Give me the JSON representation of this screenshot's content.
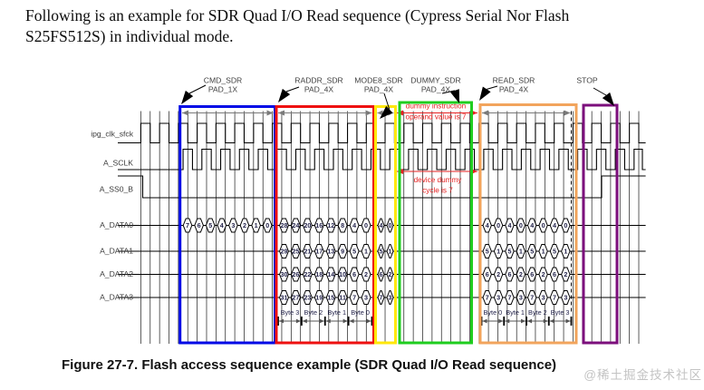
{
  "paragraph": {
    "line1": "Following is an example for SDR Quad I/O Read sequence (Cypress Serial Nor Flash",
    "line2": "S25FS512S) in individual mode."
  },
  "caption": "Figure 27-7. Flash access sequence example (SDR Quad I/O Read sequence)",
  "watermark": "@稀土掘金技术社区",
  "diagram": {
    "signals": [
      "ipg_clk_sfck",
      "A_SCLK",
      "A_SS0_B",
      "A_DATA0",
      "A_DATA1",
      "A_DATA2",
      "A_DATA3"
    ],
    "sections": [
      {
        "id": "cmd",
        "label": [
          "CMD_SDR",
          "PAD_1X"
        ],
        "color": "#0009e6"
      },
      {
        "id": "raddr",
        "label": [
          "RADDR_SDR",
          "PAD_4X"
        ],
        "color": "#ee1010"
      },
      {
        "id": "mode",
        "label": [
          "MODE8_SDR",
          "PAD_4X"
        ],
        "color": "#ffe70a"
      },
      {
        "id": "dummy",
        "label": [
          "DUMMY_SDR",
          "PAD_4X"
        ],
        "color": "#1fcd1f"
      },
      {
        "id": "read",
        "label": [
          "READ_SDR",
          "PAD_4X"
        ],
        "color": "#f2a45c"
      },
      {
        "id": "stop",
        "label": [
          "STOP"
        ],
        "color": "#7c0f7c"
      }
    ],
    "values": {
      "cmd": [
        [
          "7",
          "6",
          "5",
          "4",
          "3",
          "2",
          "1",
          "0"
        ],
        [],
        [],
        []
      ],
      "raddr": [
        [
          "28",
          "24",
          "20",
          "16",
          "12",
          "8",
          "4",
          "0"
        ],
        [
          "29",
          "25",
          "21",
          "17",
          "13",
          "9",
          "5",
          "1"
        ],
        [
          "30",
          "26",
          "22",
          "18",
          "14",
          "10",
          "6",
          "2"
        ],
        [
          "31",
          "27",
          "23",
          "19",
          "15",
          "11",
          "7",
          "3"
        ]
      ],
      "mode": [
        [
          "4",
          "0"
        ],
        [
          "5",
          "1"
        ],
        [
          "6",
          "2"
        ],
        [
          "7",
          "3"
        ]
      ],
      "read": [
        [
          "4",
          "0",
          "4",
          "0",
          "4",
          "0",
          "4",
          "0"
        ],
        [
          "5",
          "1",
          "5",
          "1",
          "5",
          "1",
          "5",
          "1"
        ],
        [
          "6",
          "2",
          "6",
          "2",
          "6",
          "2",
          "6",
          "2"
        ],
        [
          "7",
          "3",
          "7",
          "3",
          "7",
          "3",
          "7",
          "3"
        ]
      ]
    },
    "byte_labels": {
      "raddr": [
        "Byte 3",
        "Byte 2",
        "Byte 1",
        "Byte 0"
      ],
      "read": [
        "Byte 0",
        "Byte 1",
        "Byte 2",
        "Byte 3"
      ]
    },
    "annotations": [
      {
        "id": "dummy_instruction",
        "lines": [
          "dummy instruction",
          "operand value is 7"
        ],
        "color": "#e62222"
      },
      {
        "id": "device_dummy",
        "lines": [
          "device dummy",
          "cycle is 7"
        ],
        "color": "#e62222"
      }
    ],
    "colors": {
      "waveform": "#000000",
      "grid": "#1a1a1a",
      "span_arrow": "#7a7a7a",
      "top_label": "#3f3f3f",
      "signal_label": "#3c3c3c",
      "value_text": "#22224a"
    }
  }
}
